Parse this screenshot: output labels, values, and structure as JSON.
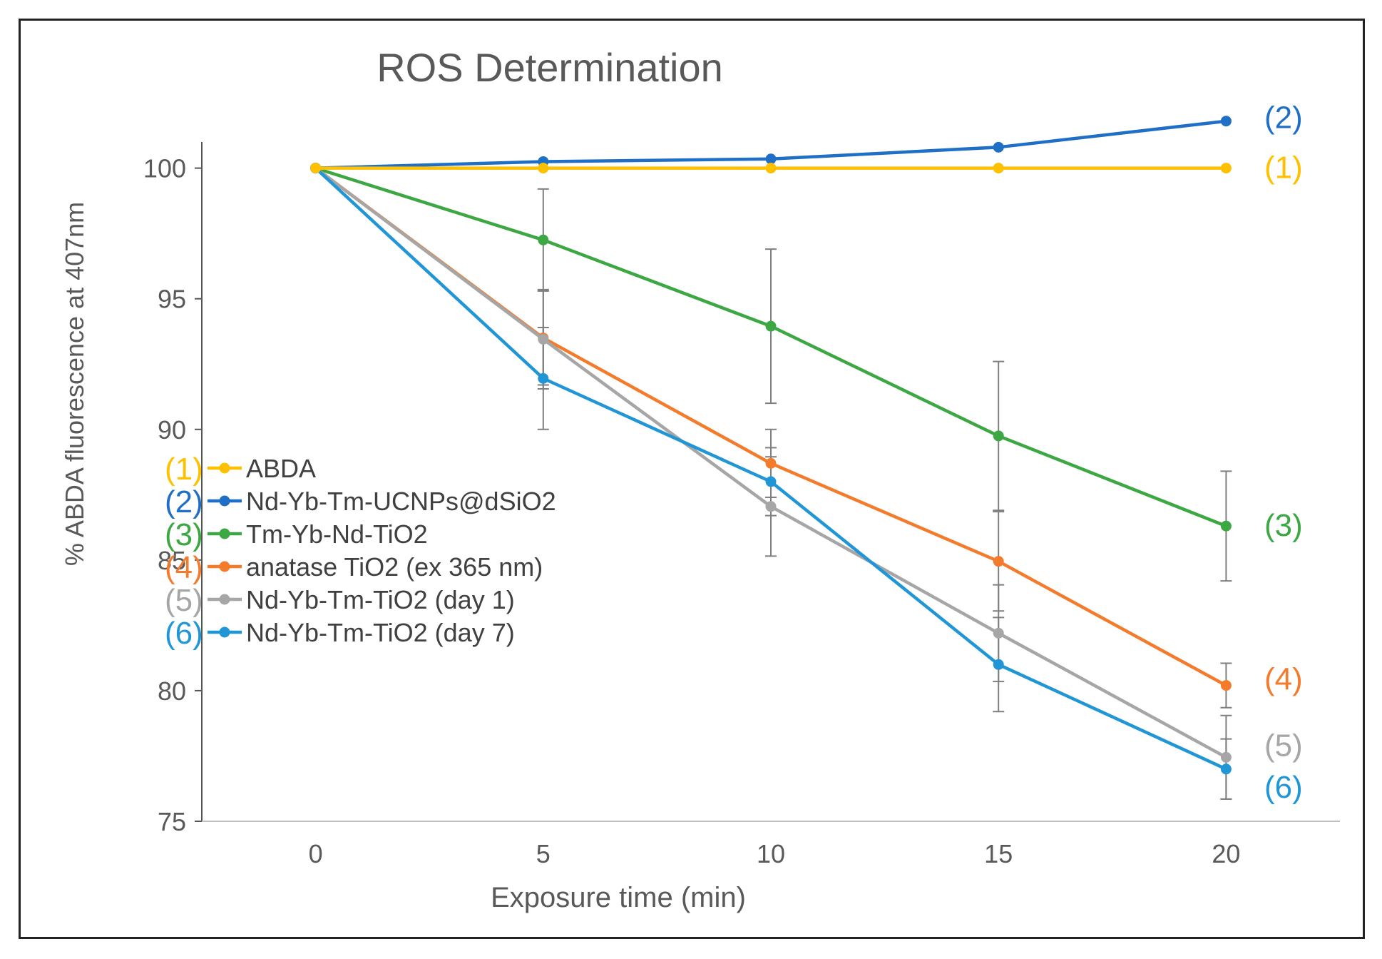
{
  "chart_data": {
    "type": "line",
    "title": "ROS Determination",
    "xlabel": "Exposure time (min)",
    "ylabel": "% ABDA fluorescence at 407nm",
    "x": [
      0,
      5,
      10,
      15,
      20
    ],
    "xlim": [
      -2.5,
      22.5
    ],
    "ylim": [
      75,
      101
    ],
    "yticks": [
      75,
      80,
      85,
      90,
      95,
      100
    ],
    "xticks": [
      0,
      5,
      10,
      15,
      20
    ],
    "grid": false,
    "legend_position": "bottom-left",
    "series": [
      {
        "id": "1",
        "tag": "(1)",
        "name": "ABDA",
        "color": "#FFC000",
        "values": [
          100,
          100,
          100,
          100,
          100
        ],
        "errors": [
          0,
          0,
          0,
          0,
          0
        ]
      },
      {
        "id": "2",
        "tag": "(2)",
        "name": "Nd-Yb-Tm-UCNPs@dSiO2",
        "color": "#1F6FC6",
        "values": [
          100,
          100.25,
          100.35,
          100.8,
          101.8
        ],
        "errors": [
          0,
          0,
          0,
          0,
          0
        ]
      },
      {
        "id": "3",
        "tag": "(3)",
        "name": "Tm-Yb-Nd-TiO2",
        "color": "#3DA843",
        "values": [
          100,
          97.25,
          93.95,
          89.75,
          86.3
        ],
        "errors": [
          0,
          1.95,
          2.95,
          2.85,
          2.1
        ]
      },
      {
        "id": "4",
        "tag": "(4)",
        "name": "anatase TiO2 (ex 365 nm)",
        "color": "#F47B2B",
        "values": [
          100,
          93.5,
          88.7,
          84.95,
          80.2
        ],
        "errors": [
          0,
          1.8,
          1.3,
          1.9,
          0.85
        ]
      },
      {
        "id": "5",
        "tag": "(5)",
        "name": "Nd-Yb-Tm-TiO2 (day 1)",
        "color": "#A6A6A6",
        "values": [
          100,
          93.45,
          87.05,
          82.2,
          77.45
        ],
        "errors": [
          0,
          1.9,
          1.9,
          1.85,
          1.6
        ]
      },
      {
        "id": "6",
        "tag": "(6)",
        "name": "Nd-Yb-Tm-TiO2 (day 7)",
        "color": "#2196D6",
        "values": [
          100,
          91.95,
          88.0,
          81.0,
          77.0
        ],
        "errors": [
          0,
          1.95,
          1.3,
          1.8,
          1.15
        ]
      }
    ]
  }
}
